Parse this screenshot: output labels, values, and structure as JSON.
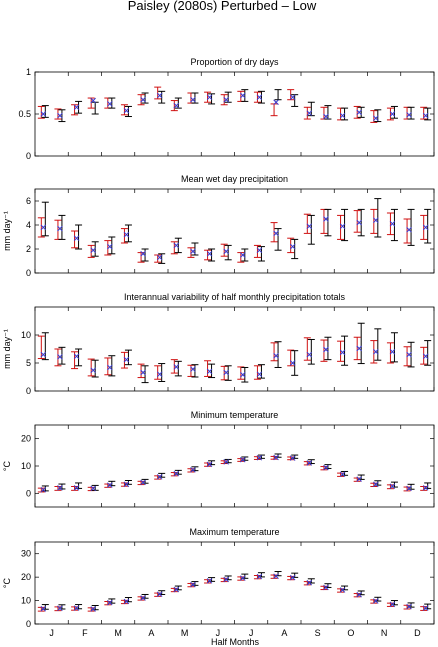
{
  "figure": {
    "title": "Paisley (2080s) Perturbed – Low",
    "xlabel": "Half Months",
    "month_labels": [
      "J",
      "F",
      "M",
      "A",
      "M",
      "J",
      "J",
      "A",
      "S",
      "O",
      "N",
      "D"
    ]
  },
  "colors": {
    "observed": "#000000",
    "model": "#d01010",
    "marker": "#3a3ad0"
  },
  "chart_data": [
    {
      "type": "errorbar",
      "title": "Proportion of dry days",
      "ylabel": "",
      "ylim": [
        0,
        1
      ],
      "yticks": [
        0,
        0.5,
        1
      ],
      "ytick_labels": [
        "0",
        "0.5",
        "1"
      ],
      "series": [
        {
          "name": "",
          "role": "black",
          "values": [
            0.53,
            0.48,
            0.58,
            0.57,
            0.63,
            0.53,
            0.69,
            0.7,
            0.63,
            0.69,
            0.68,
            0.7,
            0.72,
            0.7,
            0.73,
            0.66,
            0.56,
            0.52,
            0.5,
            0.52,
            0.48,
            0.52,
            0.51,
            0.5
          ],
          "err": [
            0.07,
            0.07,
            0.07,
            0.07,
            0.06,
            0.06,
            0.06,
            0.07,
            0.06,
            0.06,
            0.06,
            0.06,
            0.07,
            0.07,
            0.06,
            0.07,
            0.08,
            0.08,
            0.07,
            0.06,
            0.07,
            0.07,
            0.07,
            0.07
          ]
        },
        {
          "name": "",
          "role": "red",
          "values": [
            0.52,
            0.5,
            0.55,
            0.63,
            0.63,
            0.55,
            0.67,
            0.75,
            0.6,
            0.69,
            0.7,
            0.67,
            0.71,
            0.7,
            0.55,
            0.73,
            0.51,
            0.51,
            0.5,
            0.52,
            0.47,
            0.5,
            0.51,
            0.51
          ],
          "err": [
            0.07,
            0.06,
            0.06,
            0.06,
            0.06,
            0.06,
            0.06,
            0.07,
            0.06,
            0.06,
            0.06,
            0.06,
            0.06,
            0.06,
            0.07,
            0.06,
            0.07,
            0.07,
            0.07,
            0.07,
            0.07,
            0.07,
            0.07,
            0.07
          ]
        },
        {
          "name": "",
          "role": "cross",
          "values": [
            0.5,
            0.48,
            0.58,
            0.66,
            0.62,
            0.54,
            0.67,
            0.72,
            0.6,
            0.67,
            0.7,
            0.67,
            0.72,
            0.7,
            0.64,
            0.7,
            0.51,
            0.47,
            0.48,
            0.52,
            0.45,
            0.5,
            0.49,
            0.48
          ]
        }
      ]
    },
    {
      "type": "errorbar",
      "title": "Mean wet day precipitation",
      "ylabel": "mm day⁻¹",
      "ylim": [
        0,
        7
      ],
      "yticks": [
        0,
        2,
        4,
        6
      ],
      "ytick_labels": [
        "0",
        "2",
        "4",
        "6"
      ],
      "series": [
        {
          "name": "",
          "role": "black",
          "values": [
            4.5,
            3.8,
            3.0,
            2.0,
            2.3,
            3.3,
            1.5,
            1.2,
            2.3,
            2.0,
            1.5,
            1.7,
            1.5,
            1.6,
            2.8,
            2.0,
            3.6,
            4.2,
            4.0,
            4.2,
            4.6,
            4.0,
            3.8,
            3.9
          ],
          "err": [
            1.4,
            1.0,
            1.0,
            0.6,
            0.7,
            0.7,
            0.5,
            0.4,
            0.6,
            0.5,
            0.5,
            0.6,
            0.5,
            0.6,
            0.9,
            0.8,
            1.2,
            1.1,
            1.3,
            1.1,
            1.6,
            1.3,
            1.5,
            1.4
          ]
        },
        {
          "name": "",
          "role": "red",
          "values": [
            3.8,
            3.6,
            2.8,
            1.8,
            2.1,
            3.1,
            1.3,
            1.2,
            2.1,
            1.7,
            1.5,
            1.9,
            1.3,
            1.8,
            3.4,
            2.3,
            4.1,
            4.3,
            3.8,
            4.3,
            4.3,
            4.1,
            3.5,
            3.8
          ],
          "err": [
            0.8,
            0.8,
            0.7,
            0.5,
            0.6,
            0.6,
            0.4,
            0.3,
            0.5,
            0.4,
            0.4,
            0.5,
            0.4,
            0.5,
            0.8,
            0.6,
            0.8,
            1.0,
            1.0,
            0.9,
            1.0,
            0.9,
            1.0,
            1.0
          ]
        },
        {
          "name": "",
          "role": "cross",
          "values": [
            3.8,
            3.7,
            2.9,
            1.9,
            2.2,
            3.2,
            1.6,
            1.3,
            2.3,
            1.8,
            1.6,
            1.8,
            1.5,
            1.9,
            3.3,
            2.2,
            3.9,
            4.5,
            3.9,
            4.2,
            4.4,
            4.1,
            3.6,
            3.8
          ]
        }
      ]
    },
    {
      "type": "errorbar",
      "title": "Interannual variability of half monthly precipitation totals",
      "ylabel": "mm day⁻¹",
      "ylim": [
        0,
        15
      ],
      "yticks": [
        0,
        5,
        10
      ],
      "ytick_labels": [
        "0",
        "5",
        "10"
      ],
      "series": [
        {
          "name": "",
          "role": "black",
          "values": [
            8.0,
            6.3,
            6.0,
            4.0,
            4.5,
            6.0,
            3.0,
            3.3,
            4.0,
            3.6,
            3.6,
            3.2,
            2.9,
            3.5,
            6.5,
            5.0,
            7.0,
            7.6,
            7.2,
            8.5,
            8.3,
            7.8,
            6.5,
            6.8
          ],
          "err": [
            2.4,
            1.5,
            1.5,
            1.5,
            1.8,
            1.3,
            1.5,
            1.6,
            1.3,
            1.1,
            1.2,
            1.3,
            1.3,
            1.2,
            2.3,
            2.2,
            2.2,
            2.0,
            2.6,
            3.6,
            2.8,
            2.6,
            2.2,
            2.2
          ]
        },
        {
          "name": "",
          "role": "red",
          "values": [
            7.8,
            6.0,
            5.5,
            4.2,
            4.4,
            5.5,
            3.6,
            3.3,
            4.4,
            3.6,
            4.0,
            3.2,
            3.2,
            3.3,
            7.0,
            5.9,
            7.5,
            7.2,
            7.1,
            7.6,
            7.0,
            6.8,
            6.2,
            6.3
          ],
          "err": [
            2.0,
            1.5,
            1.5,
            1.5,
            1.5,
            1.4,
            1.2,
            1.2,
            1.2,
            1.0,
            1.4,
            1.2,
            1.1,
            1.2,
            1.6,
            1.4,
            2.0,
            1.9,
            1.8,
            2.0,
            2.0,
            1.8,
            1.7,
            1.5
          ]
        },
        {
          "name": "",
          "role": "cross",
          "values": [
            6.5,
            6.1,
            6.2,
            3.7,
            4.2,
            5.6,
            3.3,
            3.0,
            4.3,
            3.9,
            3.5,
            3.3,
            2.9,
            3.0,
            6.3,
            5.0,
            6.5,
            7.4,
            6.9,
            7.6,
            7.0,
            7.0,
            6.5,
            6.2
          ]
        }
      ]
    },
    {
      "type": "errorbar",
      "title": "Minimum temperature",
      "ylabel": "°C",
      "ylim": [
        -5,
        25
      ],
      "yticks": [
        0,
        10,
        20
      ],
      "ytick_labels": [
        "0",
        "10",
        "20"
      ],
      "series": [
        {
          "name": "",
          "role": "black",
          "values": [
            1.8,
            2.5,
            2.8,
            2.0,
            3.6,
            4.0,
            4.4,
            6.6,
            7.7,
            9.0,
            11.2,
            11.8,
            12.7,
            13.4,
            13.8,
            13.4,
            11.6,
            9.8,
            7.3,
            5.9,
            3.8,
            3.2,
            2.4,
            2.8
          ],
          "err": [
            0.9,
            0.9,
            1.0,
            0.9,
            0.8,
            0.7,
            0.7,
            0.7,
            0.7,
            0.7,
            0.7,
            0.6,
            0.6,
            0.6,
            0.6,
            0.6,
            0.7,
            0.7,
            0.7,
            0.8,
            0.8,
            0.9,
            0.9,
            1.0
          ]
        },
        {
          "name": "",
          "role": "red",
          "values": [
            1.2,
            1.8,
            1.8,
            1.6,
            2.8,
            3.2,
            3.8,
            5.8,
            7.0,
            8.4,
            10.5,
            11.4,
            12.2,
            12.9,
            13.0,
            12.8,
            11.0,
            9.2,
            6.8,
            5.0,
            3.1,
            2.4,
            1.6,
            1.8
          ],
          "err": [
            0.7,
            0.7,
            0.7,
            0.6,
            0.6,
            0.6,
            0.6,
            0.6,
            0.6,
            0.6,
            0.6,
            0.5,
            0.5,
            0.5,
            0.5,
            0.5,
            0.6,
            0.6,
            0.6,
            0.6,
            0.6,
            0.7,
            0.7,
            0.7
          ]
        },
        {
          "name": "",
          "role": "cross",
          "values": [
            1.3,
            2.0,
            2.0,
            1.8,
            3.0,
            3.3,
            4.0,
            6.0,
            7.2,
            8.6,
            10.6,
            11.5,
            12.3,
            13.0,
            13.1,
            12.9,
            11.1,
            9.4,
            7.0,
            5.2,
            3.3,
            2.6,
            1.8,
            2.0
          ]
        }
      ]
    },
    {
      "type": "errorbar",
      "title": "Maximum temperature",
      "ylabel": "°C",
      "ylim": [
        0,
        35
      ],
      "yticks": [
        0,
        10,
        20,
        30
      ],
      "ytick_labels": [
        "0",
        "10",
        "20",
        "30"
      ],
      "series": [
        {
          "name": "",
          "role": "black",
          "values": [
            7.3,
            7.3,
            7.4,
            7.0,
            9.8,
            10.4,
            11.8,
            13.4,
            15.4,
            17.3,
            19.0,
            19.7,
            20.4,
            21.0,
            21.5,
            20.8,
            18.4,
            16.4,
            15.4,
            13.3,
            10.6,
            9.1,
            8.1,
            7.5
          ],
          "err": [
            1.0,
            0.9,
            0.9,
            0.9,
            0.9,
            0.9,
            0.8,
            0.8,
            0.8,
            0.8,
            0.8,
            0.8,
            0.9,
            0.9,
            0.9,
            0.9,
            0.9,
            0.8,
            0.8,
            0.8,
            0.8,
            0.9,
            0.9,
            1.0
          ]
        },
        {
          "name": "",
          "role": "red",
          "values": [
            6.3,
            6.5,
            6.6,
            6.2,
            8.9,
            9.4,
            10.9,
            12.5,
            14.5,
            16.6,
            18.2,
            18.8,
            19.4,
            20.0,
            20.2,
            19.6,
            17.4,
            15.4,
            14.3,
            12.3,
            9.6,
            8.2,
            7.2,
            6.6
          ],
          "err": [
            0.8,
            0.8,
            0.7,
            0.7,
            0.7,
            0.7,
            0.7,
            0.7,
            0.7,
            0.7,
            0.7,
            0.7,
            0.7,
            0.7,
            0.7,
            0.7,
            0.7,
            0.7,
            0.7,
            0.7,
            0.7,
            0.7,
            0.8,
            0.8
          ]
        },
        {
          "name": "",
          "role": "cross",
          "values": [
            6.5,
            6.7,
            6.8,
            6.4,
            9.1,
            9.6,
            11.1,
            12.7,
            14.7,
            16.8,
            18.4,
            19.0,
            19.6,
            20.2,
            20.4,
            19.8,
            17.6,
            15.6,
            14.5,
            12.5,
            9.8,
            8.4,
            7.4,
            6.8
          ]
        }
      ]
    }
  ]
}
